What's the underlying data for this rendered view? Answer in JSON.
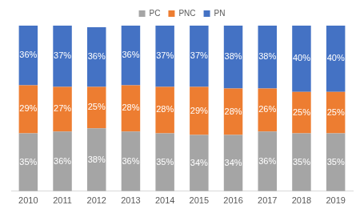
{
  "chart_data": {
    "type": "bar",
    "stacked": true,
    "categories": [
      "2010",
      "2011",
      "2012",
      "2013",
      "2014",
      "2015",
      "2016",
      "2017",
      "2018",
      "2019"
    ],
    "series": [
      {
        "name": "PC",
        "color": "#a5a5a5",
        "values": [
          35,
          36,
          38,
          36,
          35,
          34,
          34,
          36,
          35,
          35
        ],
        "value_labels": [
          "35%",
          "36%",
          "38%",
          "36%",
          "35%",
          "34%",
          "34%",
          "36%",
          "35%",
          "35%"
        ]
      },
      {
        "name": "PNC",
        "color": "#ed7d31",
        "values": [
          29,
          27,
          25,
          28,
          28,
          29,
          28,
          26,
          25,
          25
        ],
        "value_labels": [
          "29%",
          "27%",
          "25%",
          "28%",
          "28%",
          "29%",
          "28%",
          "26%",
          "25%",
          "25%"
        ]
      },
      {
        "name": "PN",
        "color": "#4472c4",
        "values": [
          36,
          37,
          36,
          36,
          37,
          37,
          38,
          38,
          40,
          40
        ],
        "value_labels": [
          "36%",
          "37%",
          "36%",
          "36%",
          "37%",
          "37%",
          "38%",
          "38%",
          "40%",
          "40%"
        ]
      }
    ],
    "ylim": [
      0,
      100
    ],
    "grid": false,
    "legend": "top",
    "data_labels": true,
    "tick_labels": "x"
  }
}
